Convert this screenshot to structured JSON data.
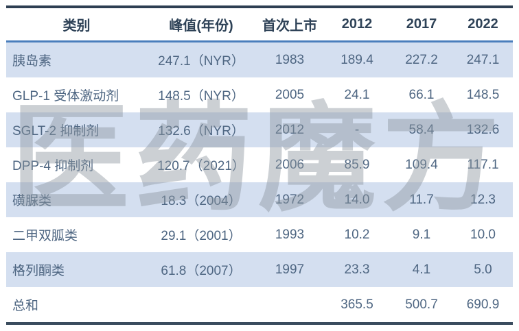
{
  "chart_data": {
    "type": "table",
    "title": "",
    "columns": [
      "类别",
      "峰值(年份)",
      "首次上市",
      "2012",
      "2017",
      "2022"
    ],
    "rows": [
      [
        "胰岛素",
        "247.1（NYR）",
        "1983",
        "189.4",
        "227.2",
        "247.1"
      ],
      [
        "GLP-1 受体激动剂",
        "148.5（NYR）",
        "2005",
        "24.1",
        "66.1",
        "148.5"
      ],
      [
        "SGLT-2 抑制剂",
        "132.6（NYR）",
        "2012",
        "-",
        "58.4",
        "132.6"
      ],
      [
        "DPP-4 抑制剂",
        "120.7（2021）",
        "2006",
        "85.9",
        "109.4",
        "117.1"
      ],
      [
        "磺脲类",
        "18.3（2004）",
        "1972",
        "14.0",
        "11.7",
        "12.3"
      ],
      [
        "二甲双胍类",
        "29.1（2001）",
        "1993",
        "10.2",
        "9.1",
        "10.0"
      ],
      [
        "格列酮类",
        "61.8（2007）",
        "1997",
        "23.3",
        "4.1",
        "5.0"
      ],
      [
        "总和",
        "",
        "",
        "365.5",
        "500.7",
        "690.9"
      ]
    ]
  },
  "watermark": {
    "text": "医药魔方"
  },
  "colors": {
    "header_text": "#2e4257",
    "body_text": "#4e6682",
    "alt_row_background": "#d4dff0",
    "top_bottom_border": "#2e3f52",
    "header_separator": "#4a7ebc",
    "watermark_gray": "#8e96a0"
  }
}
